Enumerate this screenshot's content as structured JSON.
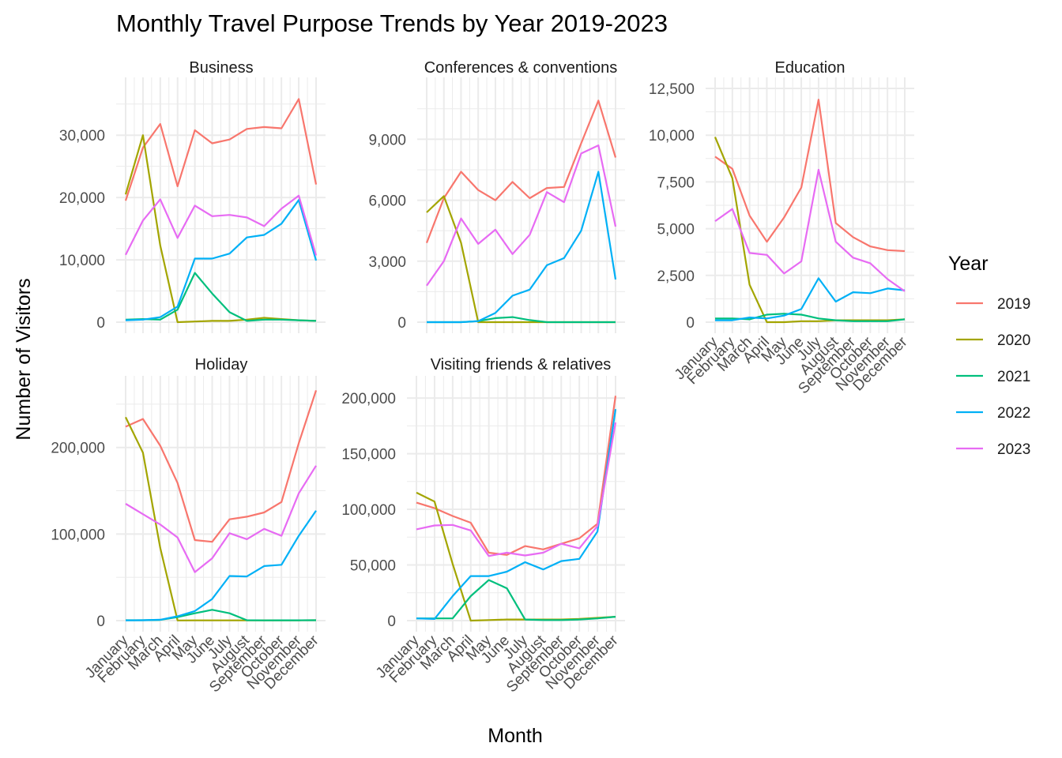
{
  "chart_data": {
    "type": "line",
    "title": "Monthly Travel Purpose Trends by Year 2019-2023",
    "xlabel": "Month",
    "ylabel": "Number of Visitors",
    "categories": [
      "January",
      "February",
      "March",
      "April",
      "May",
      "June",
      "July",
      "August",
      "September",
      "October",
      "November",
      "December"
    ],
    "legend": {
      "title": "Year",
      "placement": "right"
    },
    "series_meta": [
      {
        "name": "2019",
        "color": "#F8766D"
      },
      {
        "name": "2020",
        "color": "#A3A500"
      },
      {
        "name": "2021",
        "color": "#00BF7D"
      },
      {
        "name": "2022",
        "color": "#00B0F6"
      },
      {
        "name": "2023",
        "color": "#E76BF3"
      }
    ],
    "facets": [
      {
        "name": "Business",
        "ylim": [
          0,
          37500
        ],
        "yticks": [
          0,
          10000,
          20000,
          30000
        ],
        "ytick_labels": [
          "0",
          "10,000",
          "20,000",
          "30,000"
        ],
        "series": [
          {
            "name": "2019",
            "values": [
              19500,
              28000,
              31800,
              21800,
              30800,
              28700,
              29300,
              31000,
              31300,
              31100,
              35800,
              22100
            ]
          },
          {
            "name": "2020",
            "values": [
              20500,
              30000,
              12300,
              0,
              100,
              200,
              200,
              400,
              700,
              500,
              300,
              200
            ]
          },
          {
            "name": "2021",
            "values": [
              400,
              500,
              400,
              2000,
              7900,
              4600,
              1600,
              200,
              400,
              400,
              300,
              200
            ]
          },
          {
            "name": "2022",
            "values": [
              300,
              400,
              800,
              2500,
              10200,
              10200,
              11000,
              13600,
              14000,
              15800,
              19600,
              9900
            ]
          },
          {
            "name": "2023",
            "values": [
              10800,
              16300,
              19700,
              13500,
              18700,
              17000,
              17200,
              16800,
              15400,
              18200,
              20300,
              10700
            ]
          }
        ]
      },
      {
        "name": "Conferences & conventions",
        "ylim": [
          0,
          11500
        ],
        "yticks": [
          0,
          3000,
          6000,
          9000
        ],
        "ytick_labels": [
          "0",
          "3,000",
          "6,000",
          "9,000"
        ],
        "series": [
          {
            "name": "2019",
            "values": [
              3900,
              6100,
              7400,
              6500,
              6000,
              6900,
              6100,
              6600,
              6650,
              8800,
              10900,
              8100
            ]
          },
          {
            "name": "2020",
            "values": [
              5400,
              6200,
              3900,
              0,
              0,
              0,
              0,
              0,
              0,
              0,
              0,
              0
            ]
          },
          {
            "name": "2021",
            "values": [
              0,
              0,
              0,
              50,
              200,
              250,
              100,
              0,
              0,
              0,
              0,
              0
            ]
          },
          {
            "name": "2022",
            "values": [
              0,
              0,
              0,
              50,
              450,
              1300,
              1600,
              2800,
              3150,
              4500,
              7400,
              2100
            ]
          },
          {
            "name": "2023",
            "values": [
              1800,
              3000,
              5100,
              3850,
              4550,
              3350,
              4300,
              6400,
              5900,
              8300,
              8700,
              4700
            ]
          }
        ]
      },
      {
        "name": "Education",
        "ylim": [
          0,
          12500
        ],
        "yticks": [
          0,
          2500,
          5000,
          7500,
          10000,
          12500
        ],
        "ytick_labels": [
          "0",
          "2,500",
          "5,000",
          "7,500",
          "10,000",
          "12,500"
        ],
        "series": [
          {
            "name": "2019",
            "values": [
              8850,
              8200,
              5700,
              4300,
              5600,
              7200,
              11900,
              5300,
              4550,
              4050,
              3850,
              3800
            ]
          },
          {
            "name": "2020",
            "values": [
              9900,
              7700,
              2000,
              0,
              0,
              50,
              50,
              100,
              100,
              100,
              100,
              150
            ]
          },
          {
            "name": "2021",
            "values": [
              200,
              200,
              150,
              400,
              450,
              400,
              200,
              100,
              50,
              50,
              50,
              150
            ]
          },
          {
            "name": "2022",
            "values": [
              100,
              100,
              250,
              200,
              350,
              700,
              2350,
              1100,
              1600,
              1550,
              1800,
              1700
            ]
          },
          {
            "name": "2023",
            "values": [
              5400,
              6050,
              3700,
              3600,
              2600,
              3250,
              8150,
              4300,
              3450,
              3150,
              2300,
              1650
            ]
          }
        ]
      },
      {
        "name": "Holiday",
        "ylim": [
          0,
          270000
        ],
        "yticks": [
          0,
          100000,
          200000
        ],
        "ytick_labels": [
          "0",
          "100,000",
          "200,000"
        ],
        "series": [
          {
            "name": "2019",
            "values": [
              224000,
              233000,
              202000,
              159000,
              93000,
              91000,
              117000,
              120000,
              125000,
              137000,
              205000,
              266000
            ]
          },
          {
            "name": "2020",
            "values": [
              235000,
              194000,
              84000,
              200,
              300,
              300,
              300,
              300,
              300,
              400,
              400,
              500
            ]
          },
          {
            "name": "2021",
            "values": [
              500,
              500,
              800,
              4000,
              8500,
              12500,
              8500,
              500,
              300,
              400,
              400,
              500
            ]
          },
          {
            "name": "2022",
            "values": [
              300,
              500,
              1000,
              5000,
              11000,
              25000,
              51500,
              51000,
              63000,
              64500,
              98000,
              127000
            ]
          },
          {
            "name": "2023",
            "values": [
              135000,
              123000,
              111000,
              96000,
              56000,
              72000,
              101000,
              94000,
              106000,
              98000,
              147000,
              179000
            ]
          }
        ]
      },
      {
        "name": "Visiting friends & relatives",
        "ylim": [
          0,
          210000
        ],
        "yticks": [
          0,
          50000,
          100000,
          150000,
          200000
        ],
        "ytick_labels": [
          "0",
          "50,000",
          "100,000",
          "150,000",
          "200,000"
        ],
        "series": [
          {
            "name": "2019",
            "values": [
              106000,
              101000,
              94000,
              88000,
              61000,
              59000,
              67000,
              64000,
              69000,
              74000,
              87000,
              202000
            ]
          },
          {
            "name": "2020",
            "values": [
              115000,
              107000,
              51000,
              0,
              500,
              1000,
              1000,
              1000,
              1000,
              1500,
              2500,
              3500
            ]
          },
          {
            "name": "2021",
            "values": [
              2000,
              2000,
              2000,
              22000,
              36500,
              29000,
              1000,
              500,
              500,
              1000,
              2000,
              3500
            ]
          },
          {
            "name": "2022",
            "values": [
              2000,
              1500,
              22000,
              40000,
              40000,
              44000,
              52500,
              46000,
              53500,
              55500,
              80000,
              190000
            ]
          },
          {
            "name": "2023",
            "values": [
              82000,
              85500,
              86000,
              81000,
              58000,
              61000,
              58500,
              61000,
              69000,
              65000,
              85000,
              178000
            ]
          }
        ]
      }
    ]
  }
}
